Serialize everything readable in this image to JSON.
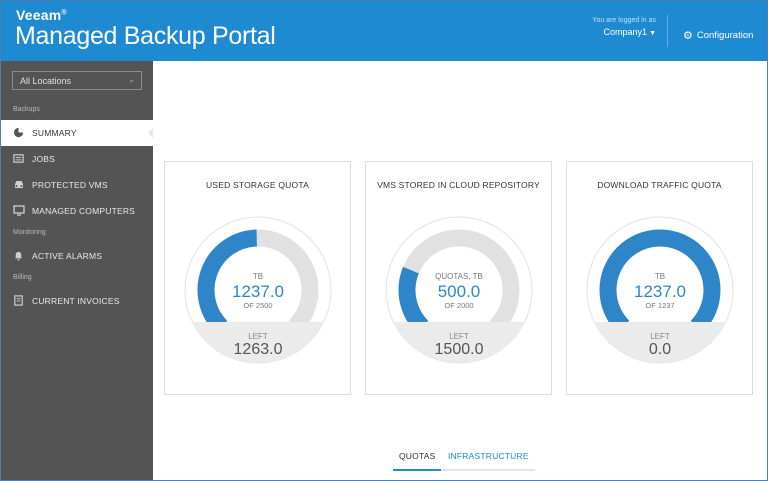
{
  "header": {
    "brand": "Veeam",
    "brand_mark": "®",
    "title": "Managed Backup Portal",
    "login_caption": "You are logged in as",
    "company": "Company1",
    "configuration_label": "Configuration"
  },
  "sidebar": {
    "location_select": "All Locations",
    "sections": {
      "backups": "Backups",
      "monitoring": "Monitoring",
      "billing": "Billing"
    },
    "items": [
      {
        "label": "SUMMARY",
        "icon": "pie-chart-icon",
        "active": true
      },
      {
        "label": "JOBS",
        "icon": "jobs-icon",
        "active": false
      },
      {
        "label": "PROTECTED VMS",
        "icon": "car-icon",
        "active": false
      },
      {
        "label": "MANAGED COMPUTERS",
        "icon": "monitor-icon",
        "active": false
      },
      {
        "label": "ACTIVE ALARMS",
        "icon": "bell-icon",
        "active": false
      },
      {
        "label": "CURRENT INVOICES",
        "icon": "invoice-icon",
        "active": false
      }
    ]
  },
  "cards": [
    {
      "title": "USED STORAGE QUOTA",
      "caption": "TB",
      "value": "1237.0",
      "of_text": "OF 2500",
      "left_caption": "LEFT",
      "left_value": "1263.0",
      "fraction": 0.4948
    },
    {
      "title": "VMS STORED IN CLOUD REPOSITORY",
      "caption": "QUOTAS, TB",
      "value": "500.0",
      "of_text": "OF 2000",
      "left_caption": "LEFT",
      "left_value": "1500.0",
      "fraction": 0.25
    },
    {
      "title": "DOWNLOAD TRAFFIC QUOTA",
      "caption": "TB",
      "value": "1237.0",
      "of_text": "OF 1237",
      "left_caption": "LEFT",
      "left_value": "0.0",
      "fraction": 1.0
    }
  ],
  "tabs": [
    {
      "label": "QUOTAS",
      "active": true
    },
    {
      "label": "INFRASTRUCTURE",
      "active": false
    }
  ],
  "colors": {
    "accent": "#1e8ad2",
    "gauge_fill": "#2e86c9",
    "gauge_track": "#e1e1e1",
    "sidebar_bg": "#545454"
  }
}
